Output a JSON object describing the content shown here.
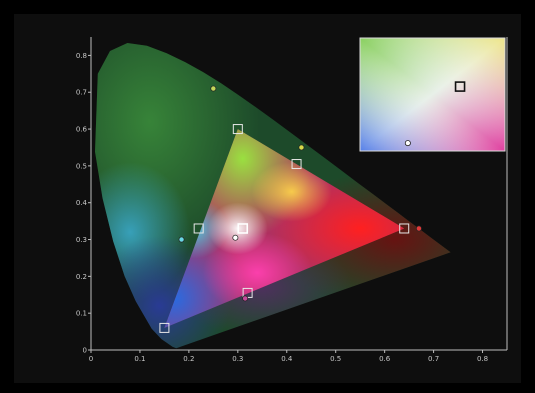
{
  "chart_data": {
    "type": "scatter",
    "title": "",
    "xlabel": "",
    "ylabel": "",
    "xlim": [
      0,
      0.85
    ],
    "ylim": [
      0,
      0.85
    ],
    "x_ticks": [
      "0",
      "0.1",
      "0.2",
      "0.3",
      "0.4",
      "0.5",
      "0.6",
      "0.7",
      "0.8"
    ],
    "y_ticks": [
      "0",
      "0.1",
      "0.2",
      "0.3",
      "0.4",
      "0.5",
      "0.6",
      "0.7",
      "0.8"
    ],
    "grid": false,
    "legend": "none",
    "spectral_locus": [
      [
        0.1741,
        0.005
      ],
      [
        0.1666,
        0.0089
      ],
      [
        0.144,
        0.0297
      ],
      [
        0.1241,
        0.0578
      ],
      [
        0.0913,
        0.1327
      ],
      [
        0.0687,
        0.2007
      ],
      [
        0.0454,
        0.295
      ],
      [
        0.0235,
        0.4127
      ],
      [
        0.0082,
        0.5384
      ],
      [
        0.0139,
        0.7502
      ],
      [
        0.0389,
        0.812
      ],
      [
        0.0743,
        0.8338
      ],
      [
        0.1142,
        0.8262
      ],
      [
        0.1547,
        0.8059
      ],
      [
        0.1929,
        0.7816
      ],
      [
        0.2296,
        0.7543
      ],
      [
        0.2658,
        0.7243
      ],
      [
        0.3016,
        0.6923
      ],
      [
        0.3373,
        0.6589
      ],
      [
        0.3731,
        0.6245
      ],
      [
        0.4087,
        0.5896
      ],
      [
        0.4441,
        0.5547
      ],
      [
        0.4788,
        0.5202
      ],
      [
        0.5125,
        0.4866
      ],
      [
        0.5448,
        0.4544
      ],
      [
        0.5752,
        0.4242
      ],
      [
        0.6029,
        0.3965
      ],
      [
        0.627,
        0.3725
      ],
      [
        0.6482,
        0.3514
      ],
      [
        0.6658,
        0.334
      ],
      [
        0.6915,
        0.3083
      ],
      [
        0.7347,
        0.2653
      ]
    ],
    "gamut_triangle": [
      [
        0.64,
        0.33
      ],
      [
        0.3,
        0.6
      ],
      [
        0.15,
        0.06
      ]
    ],
    "square_markers": [
      {
        "x": 0.15,
        "y": 0.06
      },
      {
        "x": 0.32,
        "y": 0.155
      },
      {
        "x": 0.22,
        "y": 0.33
      },
      {
        "x": 0.31,
        "y": 0.33
      },
      {
        "x": 0.3,
        "y": 0.6
      },
      {
        "x": 0.42,
        "y": 0.505
      },
      {
        "x": 0.64,
        "y": 0.33
      }
    ],
    "circle_markers": [
      {
        "x": 0.25,
        "y": 0.71,
        "color": "#c4d85a"
      },
      {
        "x": 0.43,
        "y": 0.55,
        "color": "#d8dc4a"
      },
      {
        "x": 0.185,
        "y": 0.3,
        "color": "#6ad8e6"
      },
      {
        "x": 0.295,
        "y": 0.305,
        "color": "#ffffff"
      },
      {
        "x": 0.67,
        "y": 0.33,
        "color": "#e23a3a"
      },
      {
        "x": 0.315,
        "y": 0.14,
        "color": "#c44a9a"
      }
    ],
    "inset": {
      "square_marker": {
        "u": 0.69,
        "v": 0.43
      },
      "circle_marker": {
        "u": 0.33,
        "v": 0.93,
        "color": "#ffffff"
      }
    }
  }
}
